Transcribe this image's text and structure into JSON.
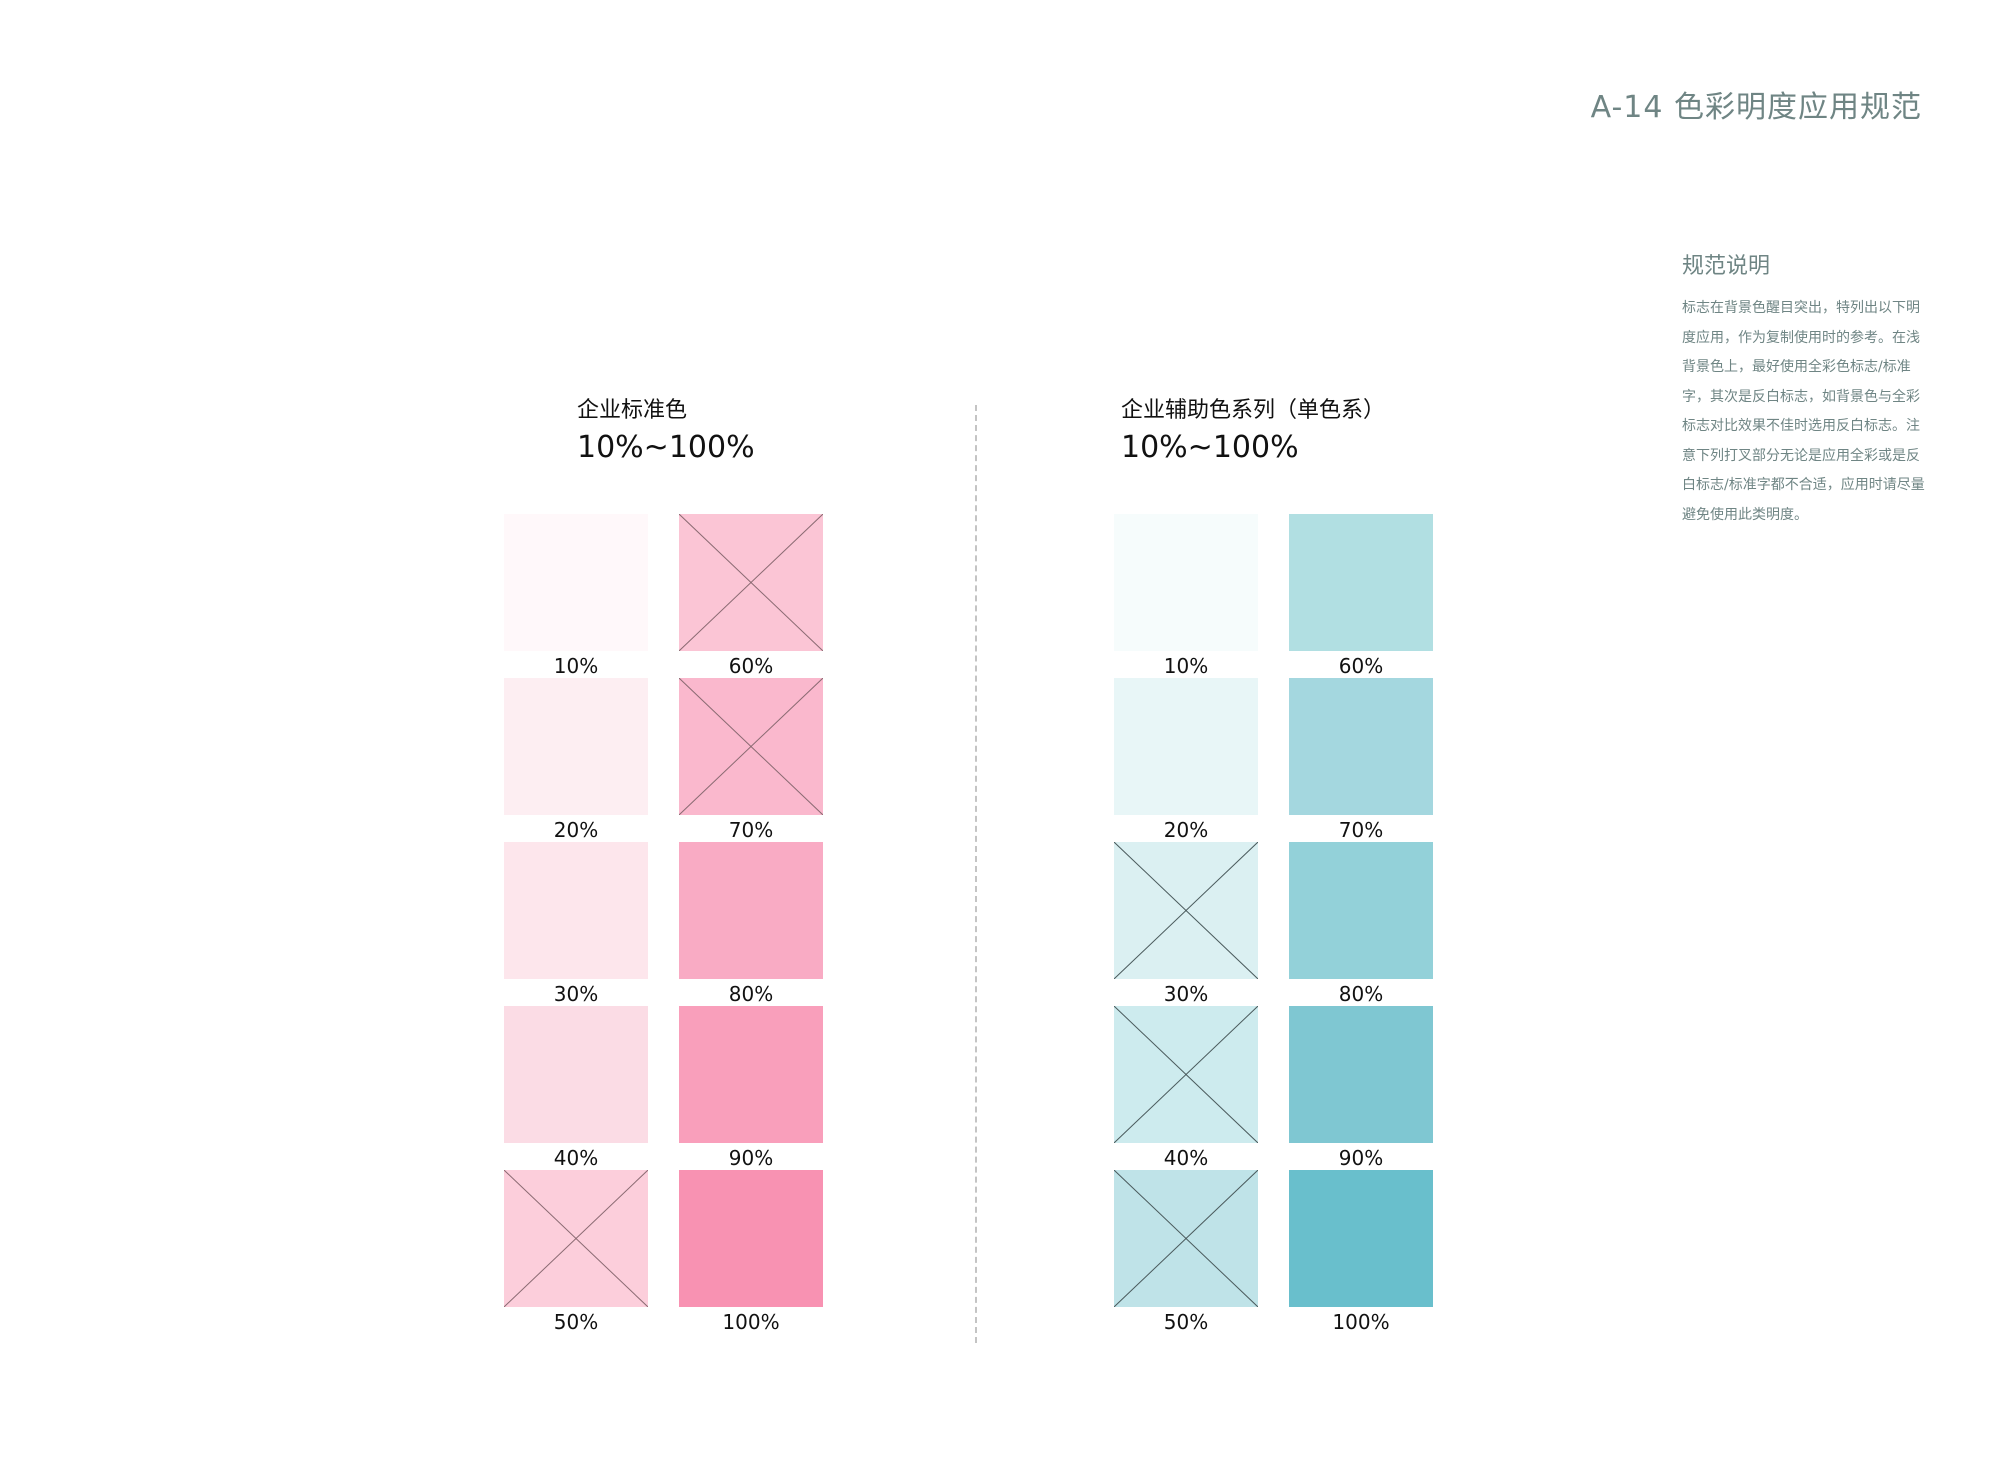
{
  "page_title": "A-14 色彩明度应用规范",
  "note": {
    "heading": "规范说明",
    "body": "标志在背景色醒目突出，特列出以下明度应用，作为复制使用时的参考。在浅背景色上，最好使用全彩色标志/标准字，其次是反白标志，如背景色与全彩标志对比效果不佳时选用反白标志。注意下列打叉部分无论是应用全彩或是反白标志/标准字都不合适，应用时请尽量避免使用此类明度。"
  },
  "palettes": [
    {
      "name": "企业标准色",
      "range": "10%~100%",
      "swatches": [
        {
          "label": "10%",
          "color": "#fff8fa",
          "crossed": false
        },
        {
          "label": "20%",
          "color": "#fdeef2",
          "crossed": false
        },
        {
          "label": "30%",
          "color": "#fde6ec",
          "crossed": false
        },
        {
          "label": "40%",
          "color": "#fbdce5",
          "crossed": false
        },
        {
          "label": "50%",
          "color": "#fccedb",
          "crossed": true
        },
        {
          "label": "60%",
          "color": "#fbc5d5",
          "crossed": true
        },
        {
          "label": "70%",
          "color": "#fab8cd",
          "crossed": true
        },
        {
          "label": "80%",
          "color": "#f9abc4",
          "crossed": false
        },
        {
          "label": "90%",
          "color": "#f99fbb",
          "crossed": false
        },
        {
          "label": "100%",
          "color": "#f892b2",
          "crossed": false
        }
      ]
    },
    {
      "name": "企业辅助色系列（单色系）",
      "range": "10%~100%",
      "swatches": [
        {
          "label": "10%",
          "color": "#f6fcfc",
          "crossed": false
        },
        {
          "label": "20%",
          "color": "#e8f6f7",
          "crossed": false
        },
        {
          "label": "30%",
          "color": "#dbf0f2",
          "crossed": true
        },
        {
          "label": "40%",
          "color": "#cdebee",
          "crossed": true
        },
        {
          "label": "50%",
          "color": "#bfe3e8",
          "crossed": true
        },
        {
          "label": "60%",
          "color": "#b1dfe2",
          "crossed": false
        },
        {
          "label": "70%",
          "color": "#a4d7df",
          "crossed": false
        },
        {
          "label": "80%",
          "color": "#93d1d9",
          "crossed": false
        },
        {
          "label": "90%",
          "color": "#7fc7d2",
          "crossed": false
        },
        {
          "label": "100%",
          "color": "#69bfcc",
          "crossed": false
        }
      ]
    }
  ]
}
